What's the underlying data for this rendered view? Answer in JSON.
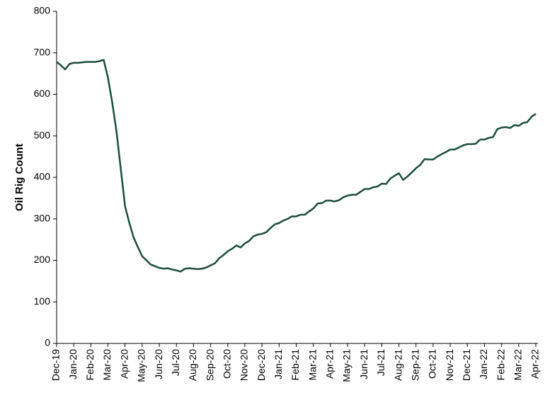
{
  "chart_data": {
    "type": "line",
    "y_label": "Oil Rig Count",
    "categories": [
      "Dec-19",
      null,
      null,
      null,
      "Jan-20",
      null,
      null,
      null,
      "Feb-20",
      null,
      null,
      null,
      "Mar-20",
      null,
      null,
      null,
      "Apr-20",
      null,
      null,
      null,
      "May-20",
      null,
      null,
      null,
      "Jun-20",
      null,
      null,
      null,
      "Jul-20",
      null,
      null,
      null,
      "Aug-20",
      null,
      null,
      null,
      "Sep-20",
      null,
      null,
      null,
      "Oct-20",
      null,
      null,
      null,
      "Nov-20",
      null,
      null,
      null,
      "Dec-20",
      null,
      null,
      null,
      "Jan-21",
      null,
      null,
      null,
      "Feb-21",
      null,
      null,
      null,
      "Mar-21",
      null,
      null,
      null,
      "Apr-21",
      null,
      null,
      null,
      "May-21",
      null,
      null,
      null,
      "Jun-21",
      null,
      null,
      null,
      "Jul-21",
      null,
      null,
      null,
      "Aug-21",
      null,
      null,
      null,
      "Sep-21",
      null,
      null,
      null,
      "Oct-21",
      null,
      null,
      null,
      "Nov-21",
      null,
      null,
      null,
      "Dec-21",
      null,
      null,
      null,
      "Jan-22",
      null,
      null,
      null,
      "Feb-22",
      null,
      null,
      null,
      "Mar-22",
      null,
      null,
      null,
      "Apr-22"
    ],
    "series": [
      {
        "name": "Oil Rig Count",
        "color": "#1b4d3c",
        "values": [
          678,
          670,
          660,
          673,
          676,
          676,
          677,
          678,
          678,
          678,
          680,
          683,
          640,
          580,
          510,
          420,
          330,
          290,
          255,
          232,
          210,
          200,
          190,
          186,
          182,
          180,
          181,
          178,
          176,
          173,
          180,
          181,
          180,
          179,
          180,
          183,
          188,
          193,
          205,
          213,
          222,
          228,
          236,
          231,
          241,
          247,
          258,
          262,
          264,
          268,
          278,
          287,
          290,
          296,
          300,
          306,
          306,
          310,
          310,
          318,
          325,
          337,
          338,
          344,
          344,
          342,
          345,
          352,
          356,
          358,
          358,
          365,
          372,
          372,
          376,
          378,
          385,
          384,
          397,
          404,
          410,
          394,
          402,
          412,
          422,
          430,
          444,
          443,
          443,
          450,
          456,
          461,
          467,
          467,
          472,
          477,
          480,
          480,
          481,
          491,
          491,
          495,
          497,
          516,
          520,
          521,
          519,
          526,
          524,
          531,
          533,
          546,
          553
        ]
      }
    ],
    "ylim": [
      0,
      800
    ],
    "yticks": [
      0,
      100,
      200,
      300,
      400,
      500,
      600,
      700,
      800
    ]
  }
}
